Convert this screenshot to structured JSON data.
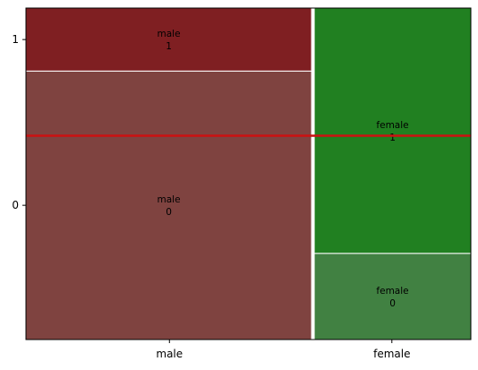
{
  "chart_data": {
    "type": "mosaic",
    "title": "",
    "xlabel": "",
    "ylabel": "",
    "categories": [
      "male",
      "female"
    ],
    "levels": [
      "0",
      "1"
    ],
    "column_widths": [
      0.645,
      0.355
    ],
    "cells": [
      {
        "category": "male",
        "level": "0",
        "fraction": 0.81,
        "label_top": "male",
        "label_bottom": "0",
        "color": "#7f4340"
      },
      {
        "category": "male",
        "level": "1",
        "fraction": 0.19,
        "label_top": "male",
        "label_bottom": "1",
        "color": "#7f1f22"
      },
      {
        "category": "female",
        "level": "0",
        "fraction": 0.26,
        "label_top": "female",
        "label_bottom": "0",
        "color": "#418142"
      },
      {
        "category": "female",
        "level": "1",
        "fraction": 0.74,
        "label_top": "female",
        "label_bottom": "1",
        "color": "#218021"
      }
    ],
    "y_ticks": [
      {
        "label": "0",
        "value": 0.405
      },
      {
        "label": "1",
        "value": 0.905
      }
    ],
    "reference_line": {
      "value": 0.615,
      "color": "#cc1111"
    }
  }
}
